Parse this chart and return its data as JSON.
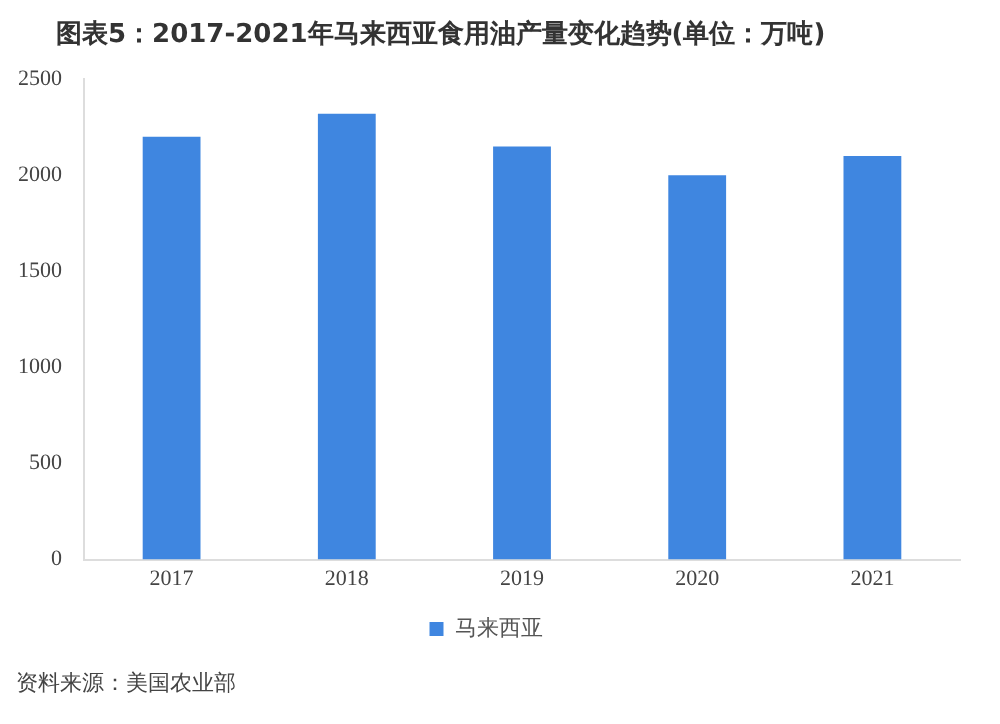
{
  "chart_data": {
    "type": "bar",
    "title": "图表5：2017-2021年马来西亚食用油产量变化趋势(单位：万吨)",
    "categories": [
      "2017",
      "2018",
      "2019",
      "2020",
      "2021"
    ],
    "series": [
      {
        "name": "马来西亚",
        "color": "#3f86e0",
        "values": [
          2200,
          2320,
          2150,
          2000,
          2100
        ]
      }
    ],
    "ylim": [
      0,
      2500
    ],
    "yticks": [
      0,
      500,
      1000,
      1500,
      2000,
      2500
    ],
    "grid": false,
    "legend": "bottom",
    "annotations": [
      "资料来源：美国农业部"
    ]
  }
}
